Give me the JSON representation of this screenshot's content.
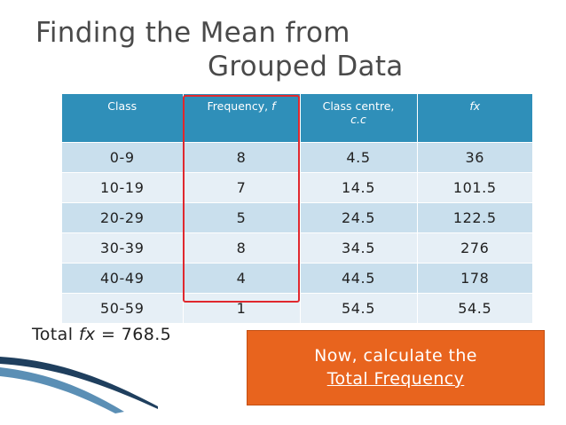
{
  "slide": {
    "title_line1": "Finding the Mean from",
    "title_line2": "Grouped Data"
  },
  "table": {
    "headers": {
      "class": "Class",
      "frequency_prefix": "Frequency, ",
      "frequency_symbol": "f",
      "centre_line1": "Class centre,",
      "centre_line2": "c.c",
      "fx": "fx"
    },
    "rows": [
      {
        "class": "0-9",
        "frequency": "8",
        "centre": "4.5",
        "fx": "36"
      },
      {
        "class": "10-19",
        "frequency": "7",
        "centre": "14.5",
        "fx": "101.5"
      },
      {
        "class": "20-29",
        "frequency": "5",
        "centre": "24.5",
        "fx": "122.5"
      },
      {
        "class": "30-39",
        "frequency": "8",
        "centre": "34.5",
        "fx": "276"
      },
      {
        "class": "40-49",
        "frequency": "4",
        "centre": "44.5",
        "fx": "178"
      },
      {
        "class": "50-59",
        "frequency": "1",
        "centre": "54.5",
        "fx": "54.5"
      }
    ]
  },
  "total": {
    "prefix": "Total ",
    "symbol": "fx",
    "value": " = 768.5"
  },
  "callout": {
    "line1": "Now, calculate the",
    "line2": "Total Frequency"
  },
  "colors": {
    "header_blue": "#2f8fb9",
    "row_light": "#e6eff6",
    "row_dark": "#c9dfed",
    "highlight_red": "#e0282e",
    "callout_orange": "#e8641e"
  }
}
